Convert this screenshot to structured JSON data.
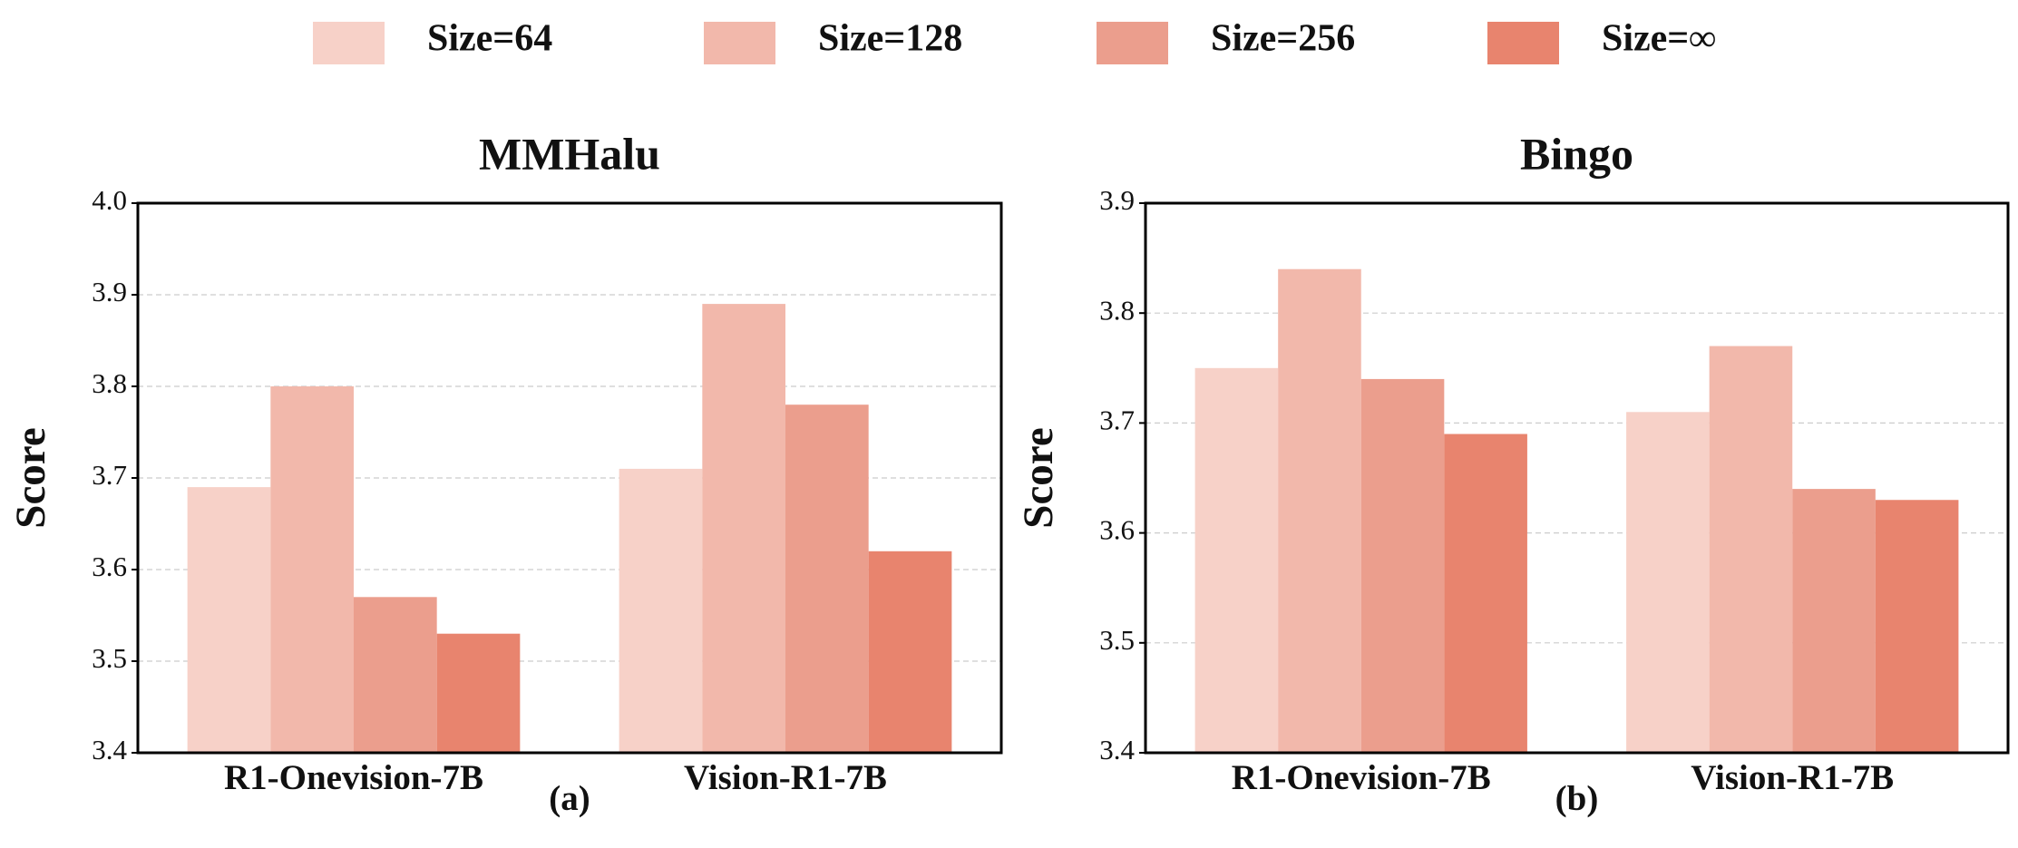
{
  "chart_data": [
    {
      "type": "bar",
      "title": "MMHalu",
      "label": "(a)",
      "ylabel": "Score",
      "categories": [
        "R1-Onevision-7B",
        "Vision-R1-7B"
      ],
      "series": [
        {
          "name": "Size=64",
          "color": "#f7d1c8",
          "values": [
            3.69,
            3.71
          ]
        },
        {
          "name": "Size=128",
          "color": "#f2b8ab",
          "values": [
            3.8,
            3.89
          ]
        },
        {
          "name": "Size=256",
          "color": "#eb9e8d",
          "values": [
            3.57,
            3.78
          ]
        },
        {
          "name": "Size=∞",
          "color": "#e8846e",
          "values": [
            3.53,
            3.62
          ]
        }
      ],
      "ylim": [
        3.4,
        4.0
      ],
      "yticks": [
        3.4,
        3.5,
        3.6,
        3.7,
        3.8,
        3.9,
        {
          "value": 4,
          "label": "4.0"
        }
      ],
      "grid": true
    },
    {
      "type": "bar",
      "title": "Bingo",
      "label": "(b)",
      "ylabel": "Score",
      "categories": [
        "R1-Onevision-7B",
        "Vision-R1-7B"
      ],
      "series": [
        {
          "name": "Size=64",
          "color": "#f7d1c8",
          "values": [
            3.75,
            3.71
          ]
        },
        {
          "name": "Size=128",
          "color": "#f2b8ab",
          "values": [
            3.84,
            3.77
          ]
        },
        {
          "name": "Size=256",
          "color": "#eb9e8d",
          "values": [
            3.74,
            3.64
          ]
        },
        {
          "name": "Size=∞",
          "color": "#e8846e",
          "values": [
            3.69,
            3.63
          ]
        }
      ],
      "ylim": [
        3.4,
        3.9
      ],
      "yticks": [
        3.4,
        3.5,
        3.6,
        3.7,
        3.8,
        3.9
      ],
      "grid": true
    }
  ]
}
